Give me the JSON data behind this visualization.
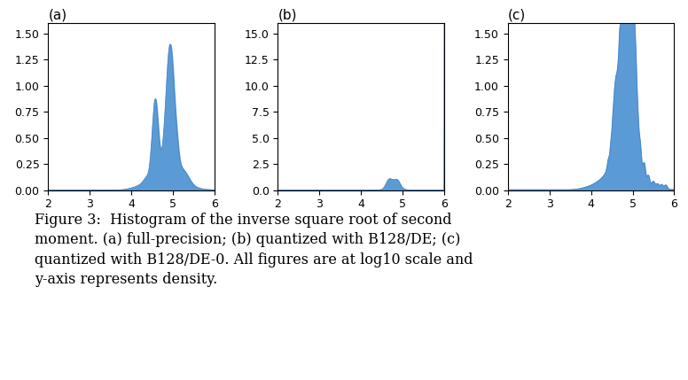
{
  "panel_a_label": "(a)",
  "panel_b_label": "(b)",
  "panel_c_label": "(c)",
  "xlim": [
    2,
    6
  ],
  "a_ylim": [
    0,
    1.6
  ],
  "b_ylim": [
    0,
    16
  ],
  "c_ylim": [
    0,
    1.6
  ],
  "a_yticks": [
    0.0,
    0.25,
    0.5,
    0.75,
    1.0,
    1.25,
    1.5
  ],
  "b_yticks": [
    0.0,
    2.5,
    5.0,
    7.5,
    10.0,
    12.5,
    15.0
  ],
  "c_yticks": [
    0.0,
    0.25,
    0.5,
    0.75,
    1.0,
    1.25,
    1.5
  ],
  "xticks": [
    2,
    3,
    4,
    5,
    6
  ],
  "fill_color": "#5b9bd5",
  "line_color": "#4a86c8",
  "background_color": "#ffffff",
  "caption_bold": "Figure 3:",
  "caption_rest": "  Histogram of the inverse square root of second moment. (a) full-precision; (b) quantized with B128/DE; (c) quantized with B128/DE-0. All figures are at log10 scale and y-axis represents density.",
  "caption_fontsize": 11.5,
  "label_fontsize": 11,
  "tick_fontsize": 9
}
